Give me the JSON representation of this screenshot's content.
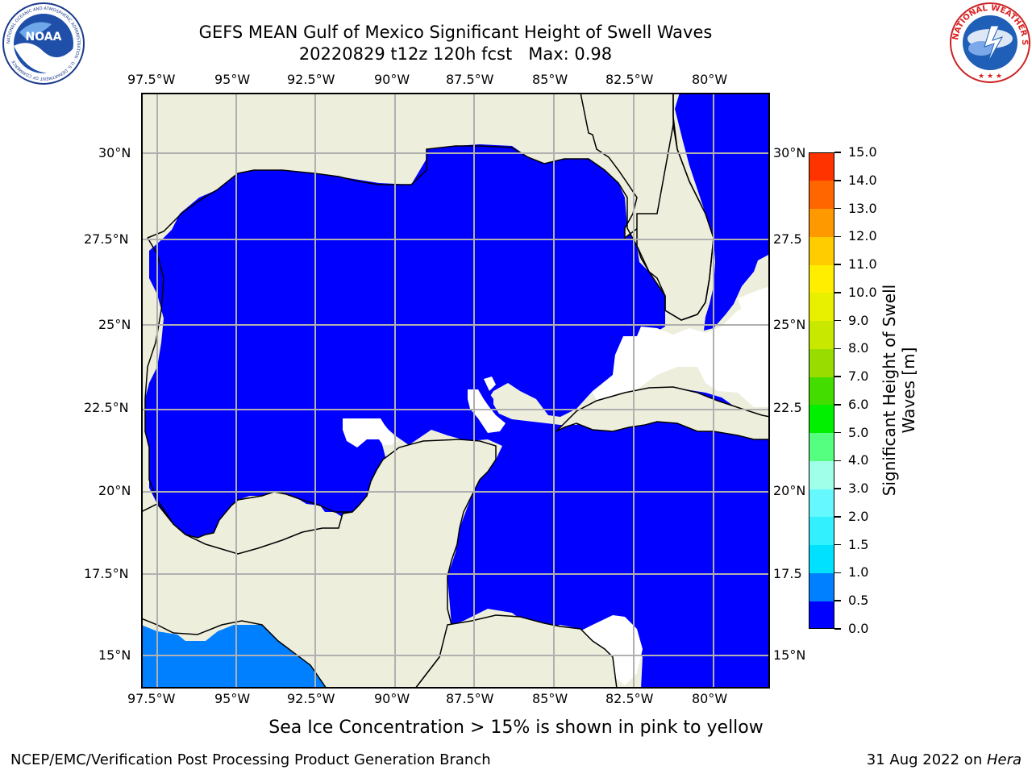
{
  "header": {
    "title_line1": "GEFS MEAN Gulf of Mexico Significant Height of Swell Waves",
    "title_line2": "20220829 t12z 120h fcst   Max: 0.98"
  },
  "logos": {
    "left": {
      "name": "noaa-logo",
      "text": "NOAA",
      "ring_text": "NATIONAL OCEANIC AND ATMOSPHERIC ADMINISTRATION · U.S. DEPARTMENT OF COMMERCE"
    },
    "right": {
      "name": "nws-logo",
      "ring_text": "NATIONAL WEATHER SERVICE"
    }
  },
  "map": {
    "lon_labels": [
      "97.5°W",
      "95°W",
      "92.5°W",
      "90°W",
      "87.5°W",
      "85°W",
      "82.5°W",
      "80°W"
    ],
    "lat_labels": [
      "30°N",
      "27.5°N",
      "25°N",
      "22.5°N",
      "20°N",
      "17.5°N",
      "15°N"
    ],
    "right_lat_labels": [
      "30°N",
      "27.5",
      "25°N",
      "22.5",
      "20°N",
      "17.5",
      "15°N"
    ],
    "lon_range": [
      -98,
      -78.3
    ],
    "lat_range": [
      14,
      31.8
    ],
    "colors": {
      "land": "#eeeedd",
      "sea_value_0_0.5": "#0000ff",
      "sea_value_0.5_1.0": "#0080ff",
      "no_data": "#ffffff",
      "grid": "#b0b0b0"
    }
  },
  "colorbar": {
    "label": "Significant Height of Swell Waves [m]",
    "ticks": [
      "0.0",
      "0.5",
      "1.0",
      "1.5",
      "2.0",
      "3.0",
      "4.0",
      "5.0",
      "6.0",
      "7.0",
      "8.0",
      "9.0",
      "10.0",
      "11.0",
      "12.0",
      "13.0",
      "14.0",
      "15.0"
    ],
    "colors": [
      "#0000ff",
      "#0080ff",
      "#00e0ff",
      "#33f0ff",
      "#66f8ff",
      "#a0ffe8",
      "#55ff80",
      "#00f000",
      "#44dd00",
      "#99dd00",
      "#c8e800",
      "#e8f000",
      "#ffee00",
      "#ffcc00",
      "#ff9900",
      "#ff6600",
      "#ff3300",
      "#ff0000"
    ]
  },
  "footer": {
    "note": "Sea Ice Concentration > 15% is shown in pink to yellow",
    "left": "NCEP/EMC/Verification Post Processing Product Generation Branch",
    "date": "31 Aug 2022 on ",
    "machine": "Hera"
  }
}
